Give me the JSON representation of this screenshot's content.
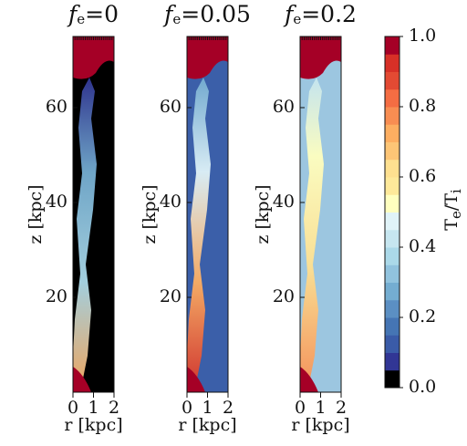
{
  "chart_data": [
    {
      "type": "heatmap",
      "title_var": "f",
      "title_sub": "e",
      "title_rest": "=0",
      "xlabel": "r [kpc]",
      "ylabel": "z [kpc]",
      "xlim": [
        0,
        2
      ],
      "ylim": [
        0,
        75
      ],
      "xticks": [
        0,
        1,
        2
      ],
      "yticks": [
        20,
        40,
        60
      ],
      "background": "#000000"
    },
    {
      "type": "heatmap",
      "title_var": "f",
      "title_sub": "e",
      "title_rest": "=0.05",
      "xlabel": "r [kpc]",
      "ylabel": "z [kpc]",
      "xlim": [
        0,
        2
      ],
      "ylim": [
        0,
        75
      ],
      "xticks": [
        0,
        1,
        2
      ],
      "yticks": [
        20,
        40,
        60
      ],
      "background": "#3b5fa9"
    },
    {
      "type": "heatmap",
      "title_var": "f",
      "title_sub": "e",
      "title_rest": "=0.2",
      "xlabel": "r [kpc]",
      "ylabel": "z [kpc]",
      "xlim": [
        0,
        2
      ],
      "ylim": [
        0,
        75
      ],
      "xticks": [
        0,
        1,
        2
      ],
      "yticks": [
        20,
        40,
        60
      ],
      "background": "#9cc6e0"
    }
  ],
  "colorbar": {
    "label_main": "T",
    "label_sub1": "e",
    "label_mid": "/T",
    "label_sub2": "i",
    "clim": [
      0,
      1
    ],
    "ticks": [
      {
        "value": 0,
        "label": "0.0"
      },
      0.2,
      0.4,
      0.6,
      0.8,
      {
        "value": 1,
        "label": "1.0"
      }
    ],
    "colors": [
      "#000000",
      "#313695",
      "#3a5ba8",
      "#4575b4",
      "#5b8fc3",
      "#74add1",
      "#91c3de",
      "#abd9e9",
      "#c6e6f0",
      "#e0f3f8",
      "#ffffbf",
      "#fee99a",
      "#fee090",
      "#fdc576",
      "#fdae61",
      "#f88d52",
      "#f46d43",
      "#e34a33",
      "#d73027",
      "#a50026"
    ]
  }
}
